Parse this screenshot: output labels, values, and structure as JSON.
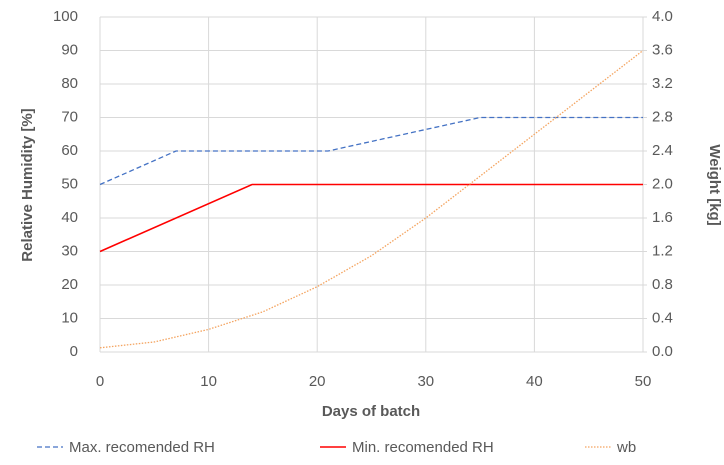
{
  "chart_data": {
    "type": "line",
    "xlabel": "Days of batch",
    "ylabel": "Relative Humidity [%]",
    "y2label": "Weight [kg]",
    "xlim": [
      0,
      50
    ],
    "xticks": [
      0,
      10,
      20,
      30,
      40,
      50
    ],
    "ylim": [
      0,
      100
    ],
    "yticks": [
      0,
      10,
      20,
      30,
      40,
      50,
      60,
      70,
      80,
      90,
      100
    ],
    "y2lim": [
      0,
      4
    ],
    "y2ticks": [
      {
        "value": 0,
        "label": "0.0"
      },
      0.4,
      0.8,
      1.2,
      1.6,
      {
        "value": 2,
        "label": "2.0"
      },
      2.4,
      2.8,
      3.2,
      3.6,
      {
        "value": 4,
        "label": "4.0"
      }
    ],
    "grid": true,
    "series": [
      {
        "name": "Max. recomended RH",
        "color": "#4472c4",
        "dash": "dashed",
        "x": [
          0,
          7,
          21,
          35,
          50
        ],
        "values": [
          50,
          60,
          60,
          70,
          70
        ]
      },
      {
        "name": "Min. recomended RH",
        "color": "#ff0000",
        "dash": "solid",
        "x": [
          0,
          14,
          50
        ],
        "values": [
          30,
          50,
          50
        ]
      },
      {
        "name": "wb",
        "color": "#f4a460",
        "dash": "dotted",
        "axis": "y2",
        "x": [
          0,
          5,
          10,
          15,
          20,
          25,
          30,
          35,
          40,
          45,
          50
        ],
        "values": [
          0.05,
          0.12,
          0.27,
          0.48,
          0.78,
          1.15,
          1.6,
          2.1,
          2.6,
          3.1,
          3.6
        ]
      }
    ]
  }
}
